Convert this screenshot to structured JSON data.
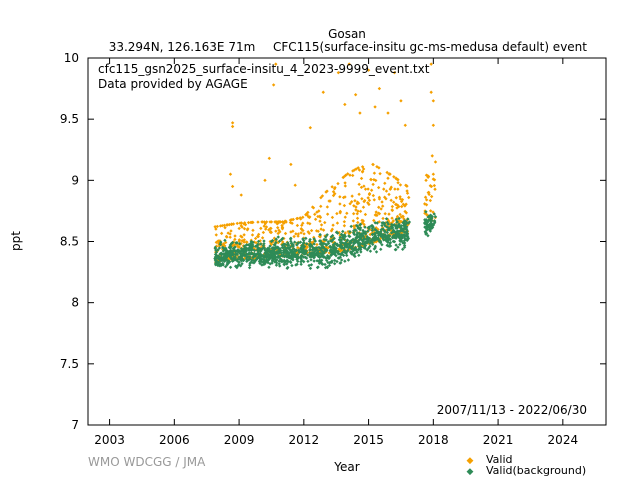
{
  "header": {
    "station": "Gosan",
    "location": "33.294N, 126.163E 71m",
    "series_title": "CFC115(surface-insitu gc-ms-medusa default) event"
  },
  "notes": {
    "filename": "cfc115_gsn2025_surface-insitu_4_2023-9999_event.txt",
    "provider": "Data provided by AGAGE",
    "date_range": "2007/11/13 - 2022/06/30",
    "credit": "WMO WDCGG / JMA"
  },
  "legend": {
    "valid_label": "Valid",
    "background_label": "Valid(background)",
    "placement": "bottom-right outside plot"
  },
  "colors": {
    "valid": "#f5a000",
    "background": "#2e8b57",
    "axis": "#000000",
    "credit": "#999999"
  },
  "chart_data": {
    "type": "scatter",
    "xlabel": "Year",
    "ylabel": "ppt",
    "xlim": [
      2002.0,
      2026.0
    ],
    "ylim": [
      7,
      10
    ],
    "xticks": [
      {
        "value": 2003,
        "label": "2003"
      },
      {
        "value": 2006,
        "label": "2006"
      },
      {
        "value": 2009,
        "label": "2009"
      },
      {
        "value": 2012,
        "label": "2012"
      },
      {
        "value": 2015,
        "label": "2015"
      },
      {
        "value": 2018,
        "label": "2018"
      },
      {
        "value": 2021,
        "label": "2021"
      },
      {
        "value": 2024,
        "label": "2024"
      }
    ],
    "yticks": [
      {
        "value": 7,
        "label": "7"
      },
      {
        "value": 7.5,
        "label": "7.5"
      },
      {
        "value": 8,
        "label": "8"
      },
      {
        "value": 8.5,
        "label": "8.5"
      },
      {
        "value": 9,
        "label": "9"
      },
      {
        "value": 9.5,
        "label": "9.5"
      },
      {
        "value": 10,
        "label": "10"
      }
    ],
    "grid": false,
    "series": [
      {
        "name": "Valid",
        "color": "#f5a000",
        "band": [
          {
            "x": 2007.87,
            "low": 8.25,
            "high": 8.62
          },
          {
            "x": 2009.0,
            "low": 8.28,
            "high": 8.65
          },
          {
            "x": 2010.0,
            "low": 8.28,
            "high": 8.66
          },
          {
            "x": 2011.0,
            "low": 8.3,
            "high": 8.66
          },
          {
            "x": 2012.0,
            "low": 8.3,
            "high": 8.7
          },
          {
            "x": 2013.0,
            "low": 8.32,
            "high": 8.9
          },
          {
            "x": 2014.0,
            "low": 8.35,
            "high": 9.05
          },
          {
            "x": 2015.0,
            "low": 8.4,
            "high": 9.15
          },
          {
            "x": 2016.0,
            "low": 8.45,
            "high": 9.05
          },
          {
            "x": 2016.8,
            "low": 8.5,
            "high": 8.95
          },
          {
            "x": 2017.6,
            "low": 8.58,
            "high": 9.05
          },
          {
            "x": 2018.1,
            "low": 8.6,
            "high": 9.0
          }
        ],
        "outliers": [
          {
            "x": 2008.7,
            "y": 9.47
          },
          {
            "x": 2008.7,
            "y": 9.44
          },
          {
            "x": 2008.6,
            "y": 9.05
          },
          {
            "x": 2008.7,
            "y": 8.95
          },
          {
            "x": 2009.1,
            "y": 8.88
          },
          {
            "x": 2010.2,
            "y": 9.0
          },
          {
            "x": 2010.4,
            "y": 9.18
          },
          {
            "x": 2010.6,
            "y": 9.78
          },
          {
            "x": 2010.7,
            "y": 9.95
          },
          {
            "x": 2011.4,
            "y": 9.13
          },
          {
            "x": 2011.6,
            "y": 8.96
          },
          {
            "x": 2012.3,
            "y": 9.43
          },
          {
            "x": 2012.9,
            "y": 9.72
          },
          {
            "x": 2013.6,
            "y": 9.88
          },
          {
            "x": 2013.9,
            "y": 9.62
          },
          {
            "x": 2014.1,
            "y": 9.95
          },
          {
            "x": 2014.4,
            "y": 9.7
          },
          {
            "x": 2014.6,
            "y": 9.55
          },
          {
            "x": 2015.0,
            "y": 9.9
          },
          {
            "x": 2015.3,
            "y": 9.6
          },
          {
            "x": 2015.5,
            "y": 9.75
          },
          {
            "x": 2015.9,
            "y": 9.55
          },
          {
            "x": 2016.2,
            "y": 9.88
          },
          {
            "x": 2016.5,
            "y": 9.65
          },
          {
            "x": 2016.7,
            "y": 9.45
          },
          {
            "x": 2017.9,
            "y": 9.95
          },
          {
            "x": 2017.9,
            "y": 9.72
          },
          {
            "x": 2018.0,
            "y": 9.65
          },
          {
            "x": 2018.0,
            "y": 9.45
          },
          {
            "x": 2017.95,
            "y": 9.2
          },
          {
            "x": 2018.1,
            "y": 9.15
          },
          {
            "x": 2018.0,
            "y": 9.05
          }
        ]
      },
      {
        "name": "Valid(background)",
        "color": "#2e8b57",
        "band": [
          {
            "x": 2007.87,
            "low": 8.22,
            "high": 8.52
          },
          {
            "x": 2009.0,
            "low": 8.25,
            "high": 8.53
          },
          {
            "x": 2010.0,
            "low": 8.25,
            "high": 8.54
          },
          {
            "x": 2011.0,
            "low": 8.26,
            "high": 8.55
          },
          {
            "x": 2012.0,
            "low": 8.25,
            "high": 8.57
          },
          {
            "x": 2013.0,
            "low": 8.22,
            "high": 8.6
          },
          {
            "x": 2014.0,
            "low": 8.3,
            "high": 8.65
          },
          {
            "x": 2015.0,
            "low": 8.35,
            "high": 8.7
          },
          {
            "x": 2016.0,
            "low": 8.4,
            "high": 8.73
          },
          {
            "x": 2016.8,
            "low": 8.42,
            "high": 8.75
          },
          {
            "x": 2017.6,
            "low": 8.48,
            "high": 8.78
          },
          {
            "x": 2018.1,
            "low": 8.58,
            "high": 8.78
          }
        ],
        "gap": [
          2016.9,
          2017.6
        ]
      }
    ]
  }
}
